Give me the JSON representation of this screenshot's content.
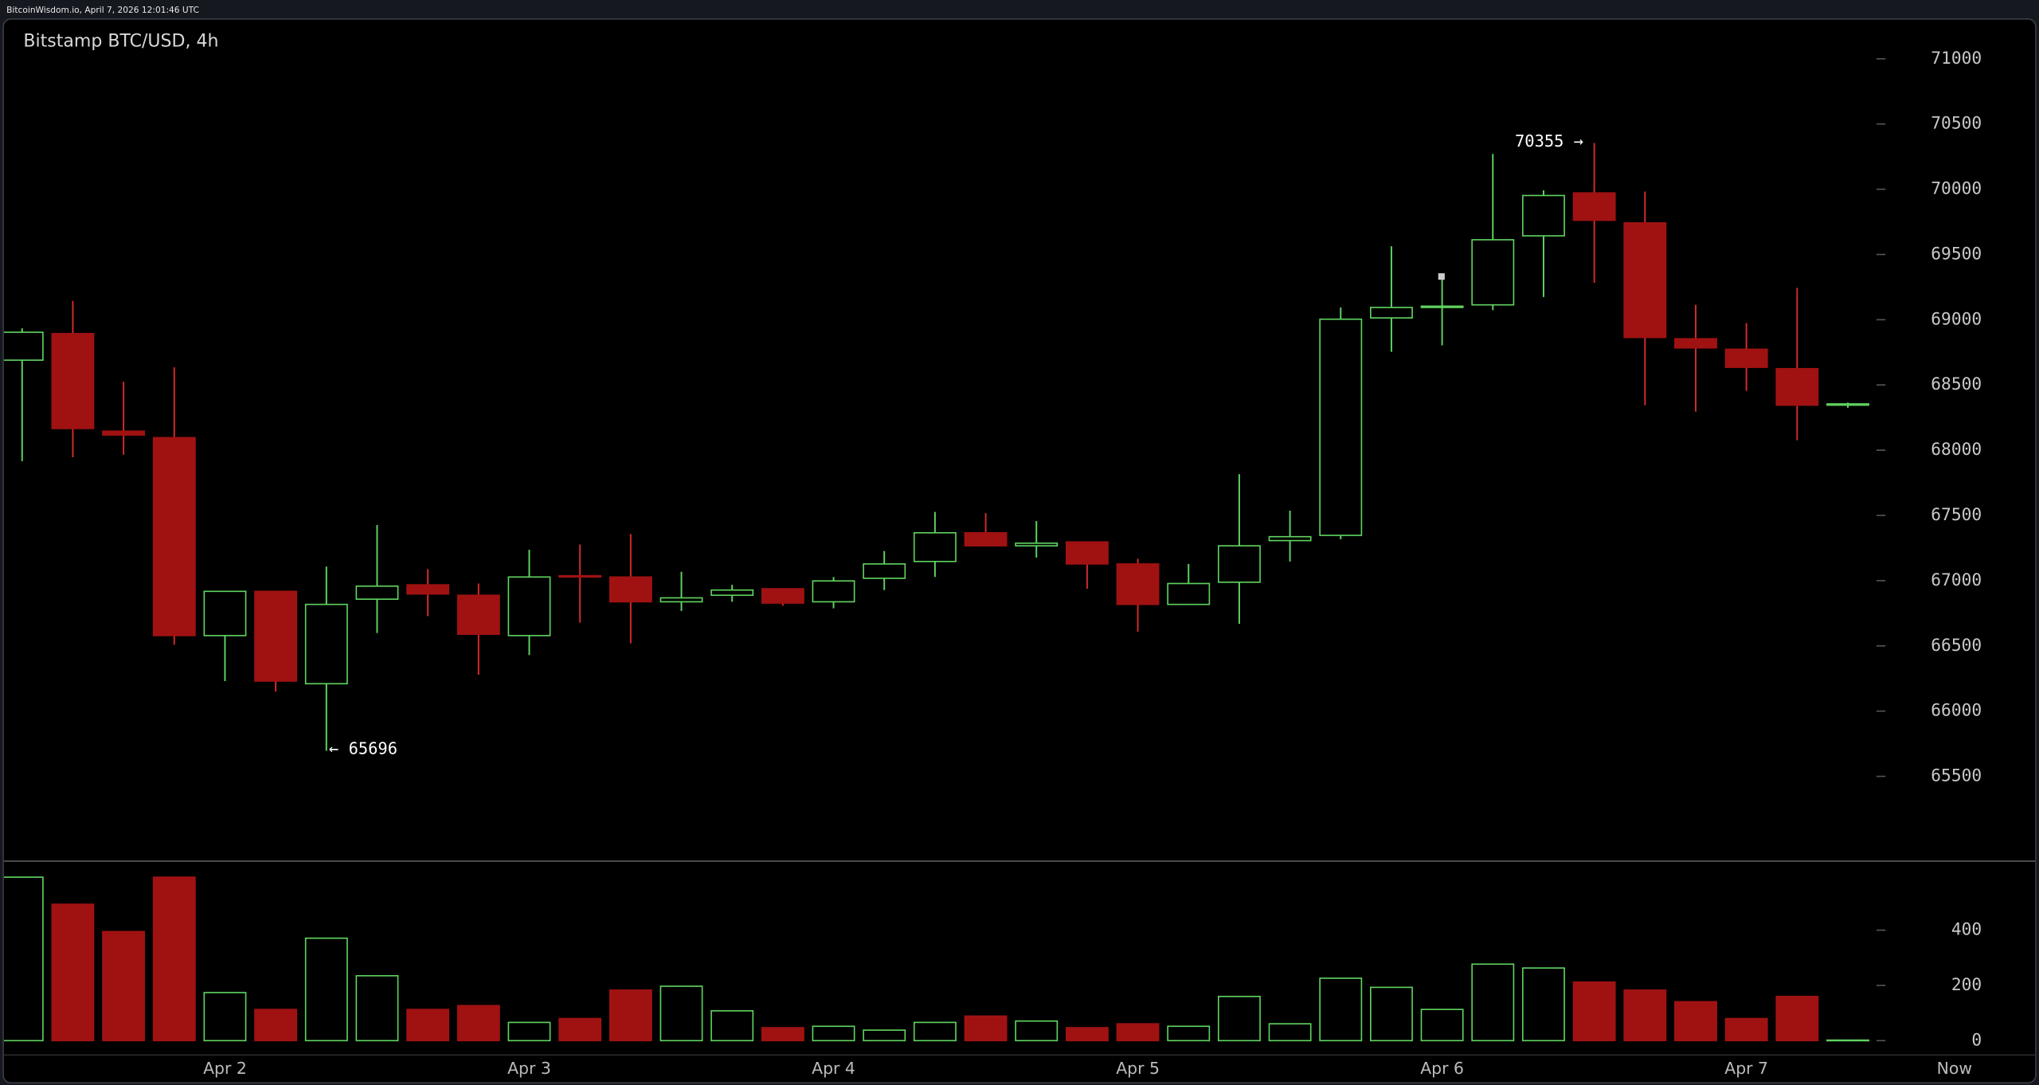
{
  "header": {
    "text": "BitcoinWisdom.io, April 7, 2026 12:01:46 UTC"
  },
  "chart_data": [
    {
      "type": "candlestick",
      "title": "Bitstamp BTC/USD, 4h",
      "open": [
        68690,
        68894,
        68146,
        68096,
        66579,
        66918,
        66210,
        66858,
        66968,
        66888,
        66579,
        67038,
        67028,
        66838,
        66888,
        66938,
        66838,
        67018,
        67147,
        67367,
        67267,
        67297,
        67128,
        66818,
        66988,
        67307,
        67347,
        69014,
        69094,
        69114,
        69643,
        69972,
        69742,
        68854,
        68774,
        68625,
        68345
      ],
      "high": [
        68934,
        69144,
        68525,
        68635,
        66918,
        66918,
        67108,
        67427,
        67088,
        66978,
        67237,
        67277,
        67357,
        67068,
        66968,
        66938,
        67028,
        67227,
        67527,
        67517,
        67457,
        67297,
        67167,
        67128,
        67816,
        67537,
        69094,
        69563,
        69323,
        70271,
        69992,
        70355,
        69982,
        69114,
        68974,
        69244,
        68365
      ],
      "low": [
        67916,
        67946,
        67966,
        66509,
        66230,
        66150,
        65696,
        66599,
        66728,
        66279,
        66429,
        66678,
        66519,
        66768,
        66838,
        66808,
        66788,
        66928,
        67028,
        67267,
        67177,
        66938,
        66609,
        66818,
        66669,
        67147,
        67317,
        68754,
        68804,
        69074,
        69174,
        69283,
        68345,
        68295,
        68455,
        68076,
        68325
      ],
      "close": [
        68904,
        68166,
        68116,
        66579,
        66918,
        66230,
        66818,
        66958,
        66898,
        66589,
        67028,
        67028,
        66838,
        66868,
        66928,
        66828,
        66998,
        67128,
        67367,
        67267,
        67287,
        67128,
        66818,
        66978,
        67267,
        67337,
        69004,
        69094,
        69104,
        69613,
        69952,
        69762,
        68864,
        68784,
        68635,
        68345,
        68355
      ],
      "up_color": "#5fd35f",
      "down_color": "#a01212",
      "down_edge": "#d42a2a",
      "ylim": [
        64850,
        71300
      ],
      "yticks": [
        65500,
        66000,
        66500,
        67000,
        67500,
        68000,
        68500,
        69000,
        69500,
        70000,
        70500,
        71000
      ],
      "annotations": [
        {
          "text": "70355 →"
        },
        {
          "text": "← 65696"
        }
      ]
    },
    {
      "type": "bar",
      "categories": [
        null,
        null,
        null,
        null,
        "Apr 2",
        null,
        null,
        null,
        null,
        null,
        "Apr 3",
        null,
        null,
        null,
        null,
        null,
        "Apr 4",
        null,
        null,
        null,
        null,
        null,
        "Apr 5",
        null,
        null,
        null,
        null,
        null,
        "Apr 6",
        null,
        null,
        null,
        null,
        null,
        "Apr 7",
        null,
        null
      ],
      "categories_note_free": null,
      "values": [
        592,
        494,
        395,
        592,
        174,
        113,
        371,
        235,
        113,
        127,
        66,
        80,
        183,
        197,
        108,
        47,
        52,
        38,
        66,
        89,
        71,
        47,
        61,
        52,
        160,
        61,
        226,
        193,
        113,
        277,
        263,
        212,
        183,
        141,
        80,
        160,
        2
      ],
      "ylim": [
        0,
        650
      ],
      "yticks": [
        0,
        200,
        400
      ],
      "now_label": "Now"
    }
  ]
}
